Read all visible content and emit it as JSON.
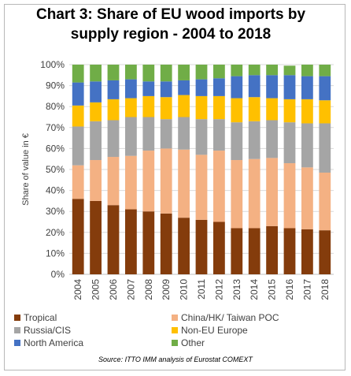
{
  "chart_data": {
    "type": "bar",
    "stacked": true,
    "title": "Chart 3: Share of EU wood imports by\nsupply region - 2004 to 2018",
    "ylabel": "Share of value in €",
    "xlabel": "",
    "ylim": [
      0,
      100
    ],
    "yticks": [
      "0%",
      "10%",
      "20%",
      "30%",
      "40%",
      "50%",
      "60%",
      "70%",
      "80%",
      "90%",
      "100%"
    ],
    "grid": true,
    "legend_position": "bottom",
    "categories": [
      "2004",
      "2005",
      "2006",
      "2007",
      "2008",
      "2009",
      "2010",
      "2011",
      "2012",
      "2013",
      "2014",
      "2015",
      "2016",
      "2017",
      "2018"
    ],
    "series": [
      {
        "name": "Tropical",
        "color": "#843C0C",
        "values": [
          36,
          35,
          33,
          31,
          30,
          29,
          27,
          26,
          25,
          22,
          22,
          23,
          22,
          21.5,
          21
        ]
      },
      {
        "name": "China/HK/ Taiwan POC",
        "color": "#F4B183",
        "values": [
          16,
          19.5,
          23,
          25.5,
          29,
          31,
          32.5,
          31,
          34,
          32.5,
          33,
          32.5,
          31,
          29.5,
          27.5
        ]
      },
      {
        "name": "Russia/CIS",
        "color": "#A5A5A5",
        "values": [
          18.5,
          18.5,
          17.5,
          18.5,
          16,
          14,
          15.5,
          17,
          15,
          18,
          18,
          18,
          19.5,
          21,
          23.5
        ]
      },
      {
        "name": "Non-EU Europe",
        "color": "#FFC000",
        "values": [
          10,
          9,
          10,
          9,
          10,
          10.5,
          10.5,
          11,
          11,
          11.5,
          11.5,
          10.5,
          11,
          11.5,
          11
        ]
      },
      {
        "name": "North America",
        "color": "#4472C4",
        "values": [
          11,
          10,
          9,
          9,
          7,
          7.5,
          7,
          8,
          8.5,
          10.5,
          10.5,
          11,
          11.5,
          11,
          11.5
        ]
      },
      {
        "name": "Other",
        "color": "#70AD47",
        "values": [
          8.5,
          8,
          7.5,
          7,
          8,
          8,
          7.5,
          7,
          6.5,
          5.5,
          5,
          5,
          4.5,
          5.5,
          5.5
        ]
      }
    ],
    "source": "Source: ITTO IMM analysis of Eurostat COMEXT"
  }
}
